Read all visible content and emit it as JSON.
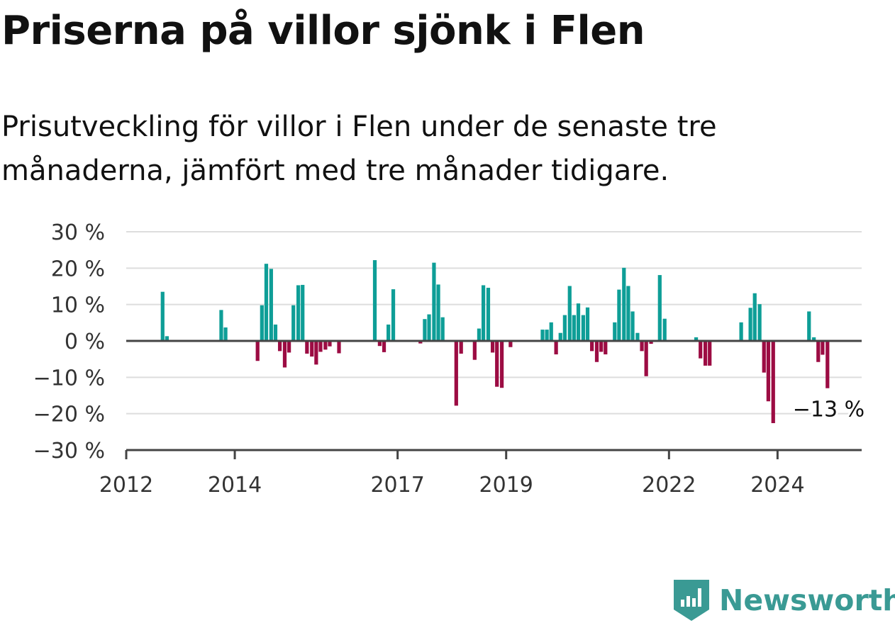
{
  "title": "Priserna på villor sjönk i Flen",
  "subtitle": "Prisutveckling för villor i Flen under de senaste tre månaderna, jämfört med tre månader tidigare.",
  "brand": {
    "name": "Newsworthy",
    "icon": "newsworthy-logo-icon",
    "color": "#3a9a94"
  },
  "colors": {
    "positive": "#0e9e97",
    "negative": "#9c0c43",
    "zero_line": "#444444",
    "grid": "#dddddd",
    "axis": "#444444"
  },
  "chart_data": {
    "type": "bar",
    "xlabel": "",
    "ylabel": "",
    "x_axis": "time (year)",
    "xlim": [
      2012.0,
      2025.55
    ],
    "ylim": [
      -30,
      30
    ],
    "y_ticks": [
      {
        "value": 30,
        "label": "30 %"
      },
      {
        "value": 20,
        "label": "20 %"
      },
      {
        "value": 10,
        "label": "10 %"
      },
      {
        "value": 0,
        "label": "0 %"
      },
      {
        "value": -10,
        "label": "−10 %"
      },
      {
        "value": -20,
        "label": "−20 %"
      },
      {
        "value": -30,
        "label": "−30 %"
      }
    ],
    "x_ticks": [
      {
        "value": 2012,
        "label": "2012"
      },
      {
        "value": 2014,
        "label": "2014"
      },
      {
        "value": 2017,
        "label": "2017"
      },
      {
        "value": 2019,
        "label": "2019"
      },
      {
        "value": 2022,
        "label": "2022"
      },
      {
        "value": 2024,
        "label": "2024"
      }
    ],
    "grid": true,
    "annotation": {
      "x": 2024.92,
      "y": -13,
      "text": "−13 %"
    },
    "points": [
      {
        "x": 2012.67,
        "y": 13.5
      },
      {
        "x": 2012.75,
        "y": 1.3
      },
      {
        "x": 2013.75,
        "y": 8.5
      },
      {
        "x": 2013.83,
        "y": 3.7
      },
      {
        "x": 2014.42,
        "y": -5.5
      },
      {
        "x": 2014.5,
        "y": 9.8
      },
      {
        "x": 2014.58,
        "y": 21.2
      },
      {
        "x": 2014.67,
        "y": 19.8
      },
      {
        "x": 2014.75,
        "y": 4.5
      },
      {
        "x": 2014.83,
        "y": -2.8
      },
      {
        "x": 2014.92,
        "y": -7.3
      },
      {
        "x": 2015.0,
        "y": -3.2
      },
      {
        "x": 2015.08,
        "y": 9.8
      },
      {
        "x": 2015.17,
        "y": 15.3
      },
      {
        "x": 2015.25,
        "y": 15.4
      },
      {
        "x": 2015.33,
        "y": -3.5
      },
      {
        "x": 2015.42,
        "y": -4.3
      },
      {
        "x": 2015.5,
        "y": -6.5
      },
      {
        "x": 2015.58,
        "y": -3.0
      },
      {
        "x": 2015.67,
        "y": -2.4
      },
      {
        "x": 2015.75,
        "y": -1.5
      },
      {
        "x": 2015.92,
        "y": -3.4
      },
      {
        "x": 2016.58,
        "y": 22.2
      },
      {
        "x": 2016.67,
        "y": -1.4
      },
      {
        "x": 2016.75,
        "y": -3.1
      },
      {
        "x": 2016.83,
        "y": 4.5
      },
      {
        "x": 2016.92,
        "y": 14.2
      },
      {
        "x": 2017.42,
        "y": -0.7
      },
      {
        "x": 2017.5,
        "y": 6.0
      },
      {
        "x": 2017.58,
        "y": 7.3
      },
      {
        "x": 2017.67,
        "y": 21.5
      },
      {
        "x": 2017.75,
        "y": 15.5
      },
      {
        "x": 2017.83,
        "y": 6.5
      },
      {
        "x": 2018.08,
        "y": -17.8
      },
      {
        "x": 2018.17,
        "y": -3.5
      },
      {
        "x": 2018.42,
        "y": -5.2
      },
      {
        "x": 2018.5,
        "y": 3.4
      },
      {
        "x": 2018.58,
        "y": 15.3
      },
      {
        "x": 2018.67,
        "y": 14.6
      },
      {
        "x": 2018.75,
        "y": -3.2
      },
      {
        "x": 2018.83,
        "y": -12.6
      },
      {
        "x": 2018.92,
        "y": -12.9
      },
      {
        "x": 2019.08,
        "y": -1.7
      },
      {
        "x": 2019.67,
        "y": 3.1
      },
      {
        "x": 2019.75,
        "y": 3.1
      },
      {
        "x": 2019.83,
        "y": 5.1
      },
      {
        "x": 2019.92,
        "y": -3.7
      },
      {
        "x": 2020.0,
        "y": 2.2
      },
      {
        "x": 2020.08,
        "y": 7.1
      },
      {
        "x": 2020.17,
        "y": 15.1
      },
      {
        "x": 2020.25,
        "y": 7.1
      },
      {
        "x": 2020.33,
        "y": 10.3
      },
      {
        "x": 2020.42,
        "y": 7.1
      },
      {
        "x": 2020.5,
        "y": 9.2
      },
      {
        "x": 2020.58,
        "y": -2.8
      },
      {
        "x": 2020.67,
        "y": -5.8
      },
      {
        "x": 2020.75,
        "y": -3.0
      },
      {
        "x": 2020.83,
        "y": -3.7
      },
      {
        "x": 2021.0,
        "y": 5.1
      },
      {
        "x": 2021.08,
        "y": 14.1
      },
      {
        "x": 2021.17,
        "y": 20.1
      },
      {
        "x": 2021.25,
        "y": 15.1
      },
      {
        "x": 2021.33,
        "y": 8.1
      },
      {
        "x": 2021.42,
        "y": 2.2
      },
      {
        "x": 2021.5,
        "y": -2.8
      },
      {
        "x": 2021.58,
        "y": -9.7
      },
      {
        "x": 2021.67,
        "y": -0.8
      },
      {
        "x": 2021.83,
        "y": 18.1
      },
      {
        "x": 2021.92,
        "y": 6.1
      },
      {
        "x": 2022.5,
        "y": 1.0
      },
      {
        "x": 2022.58,
        "y": -4.8
      },
      {
        "x": 2022.67,
        "y": -6.8
      },
      {
        "x": 2022.75,
        "y": -6.8
      },
      {
        "x": 2023.33,
        "y": 5.1
      },
      {
        "x": 2023.5,
        "y": 9.1
      },
      {
        "x": 2023.58,
        "y": 13.1
      },
      {
        "x": 2023.67,
        "y": 10.1
      },
      {
        "x": 2023.75,
        "y": -8.7
      },
      {
        "x": 2023.83,
        "y": -16.6
      },
      {
        "x": 2023.92,
        "y": -22.6
      },
      {
        "x": 2024.58,
        "y": 8.1
      },
      {
        "x": 2024.67,
        "y": 1.0
      },
      {
        "x": 2024.75,
        "y": -5.8
      },
      {
        "x": 2024.83,
        "y": -3.8
      },
      {
        "x": 2024.92,
        "y": -13.0
      }
    ]
  }
}
